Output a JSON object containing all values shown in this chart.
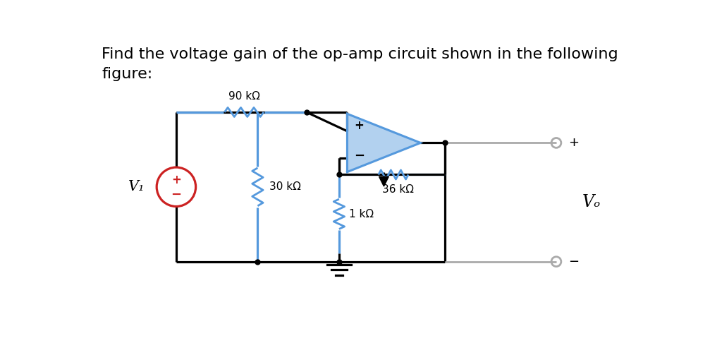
{
  "title_line1": "Find the voltage gain of the op-amp circuit shown in the following",
  "title_line2": "figure:",
  "bg_color": "#ffffff",
  "title_fontsize": 16,
  "title_color": "#000000",
  "wire_color": "#000000",
  "blue_color": "#5599dd",
  "red_color": "#cc2222",
  "gray_color": "#aaaaaa",
  "label_90k": "90 kΩ",
  "label_30k": "30 kΩ",
  "label_36k": "36 kΩ",
  "label_1k": "1 kΩ",
  "label_V1": "V₁",
  "label_Vo": "Vₒ"
}
